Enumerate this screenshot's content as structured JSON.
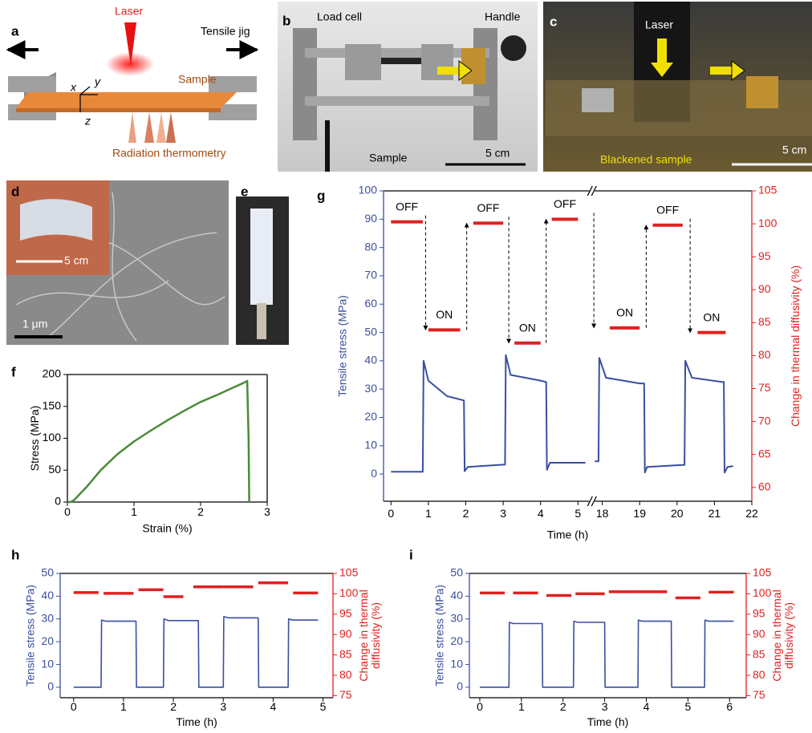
{
  "panels": {
    "a": {
      "letter": "a",
      "laser": "Laser",
      "jig": "Tensile jig",
      "sample": "Sample",
      "x": "x",
      "y": "y",
      "z": "z",
      "thermometry": "Radiation thermometry"
    },
    "b": {
      "letter": "b",
      "load_cell": "Load cell",
      "handle": "Handle",
      "sample": "Sample",
      "scale": "5 cm"
    },
    "c": {
      "letter": "c",
      "laser": "Laser",
      "sample": "Blackened sample",
      "scale": "5 cm"
    },
    "d": {
      "letter": "d",
      "inset_scale": "5 cm",
      "scale": "1 μm"
    },
    "e": {
      "letter": "e"
    }
  },
  "chart_data": [
    {
      "panel_label": "f",
      "type": "line",
      "xlabel": "Strain (%)",
      "ylabel": "Stress (MPa)",
      "xlim": [
        0,
        3
      ],
      "xticks": [
        0,
        1,
        2,
        3
      ],
      "ylim": [
        0,
        200
      ],
      "yticks": [
        0,
        50,
        100,
        150,
        200
      ],
      "series": [
        {
          "color": "#4a8a3a",
          "x": [
            0,
            0.05,
            0.1,
            0.3,
            0.5,
            0.75,
            1,
            1.25,
            1.5,
            1.75,
            2,
            2.25,
            2.5,
            2.65,
            2.7,
            2.72,
            2.73
          ],
          "values": [
            0,
            0,
            3,
            25,
            50,
            75,
            95,
            112,
            128,
            143,
            157,
            168,
            180,
            187,
            190,
            100,
            0
          ]
        }
      ]
    },
    {
      "panel_label": "g",
      "type": "line",
      "xlabel": "Time (h)",
      "ylabel": "Tensile stress (MPa)",
      "y2label": [
        "Change in thermal diffusivity (%)"
      ],
      "xlim": [
        [
          -0.2,
          5.3
        ],
        [
          17.8,
          22
        ]
      ],
      "xticks": [
        0,
        1,
        2,
        3,
        4,
        5,
        18,
        19,
        20,
        21,
        22
      ],
      "ylim": [
        -9.6,
        100
      ],
      "yticks": [
        0,
        10,
        20,
        30,
        40,
        50,
        60,
        70,
        80,
        90,
        100
      ],
      "y2lim": [
        57.9,
        105
      ],
      "y2ticks": [
        60,
        65,
        70,
        75,
        80,
        85,
        90,
        95,
        100,
        105
      ],
      "ycolor": "#3a4fa0",
      "y2color": "#e02020",
      "series": [
        {
          "color": "#3a4fa0",
          "x": [
            0,
            0.85,
            0.87,
            1.0,
            1.5,
            1.95,
            1.97,
            2.05,
            3.0,
            3.05,
            3.07,
            3.2,
            4.0,
            4.15,
            4.17,
            4.25,
            5.2,
            null,
            17.8,
            17.9,
            17.92,
            18.1,
            19.0,
            19.12,
            19.14,
            19.2,
            20.15,
            20.2,
            20.22,
            20.4,
            21.2,
            21.25,
            21.27,
            21.35,
            21.5
          ],
          "values": [
            0.8,
            0.8,
            40,
            33,
            27.5,
            26,
            1,
            2.5,
            3.3,
            3.3,
            42,
            35,
            33,
            32.5,
            1.5,
            4,
            4,
            null,
            4.5,
            4.5,
            41,
            34,
            32,
            32,
            0.5,
            2.5,
            3.2,
            3.2,
            40,
            34,
            32.5,
            32.5,
            0.5,
            2.5,
            2.8
          ]
        }
      ],
      "state_bars": {
        "color": "#e02020",
        "axis": "y2",
        "x_start": [
          0,
          1.0,
          2.2,
          3.3,
          4.3,
          18.2,
          19.35,
          20.55
        ],
        "x_end": [
          0.85,
          1.85,
          3.0,
          4.0,
          5.0,
          19.0,
          20.15,
          21.3
        ],
        "values": [
          100.3,
          83.9,
          100.1,
          81.9,
          100.7,
          84.2,
          99.8,
          83.5
        ],
        "labels": [
          "OFF",
          "ON",
          "OFF",
          "ON",
          "OFF",
          "ON",
          "OFF",
          "ON"
        ]
      }
    },
    {
      "panel_label": "h",
      "type": "line",
      "xlabel": "Time (h)",
      "ylabel": "Tensile stress (MPa)",
      "y2label": [
        "Change in thermal",
        "diffusivity (%)"
      ],
      "xlim": [
        -0.27,
        5.2
      ],
      "xticks": [
        0,
        1,
        2,
        3,
        4,
        5
      ],
      "ylim": [
        -4.6,
        50
      ],
      "yticks": [
        0,
        10,
        20,
        30,
        40,
        50
      ],
      "y2lim": [
        74.5,
        105
      ],
      "y2ticks": [
        75,
        80,
        85,
        90,
        95,
        100,
        105
      ],
      "ycolor": "#3a4fa0",
      "y2color": "#e02020",
      "series": [
        {
          "color": "#3a4fa0",
          "x": [
            0,
            0.55,
            0.56,
            0.65,
            1.25,
            1.26,
            1.8,
            1.81,
            1.9,
            2.5,
            2.51,
            3.0,
            3.01,
            3.1,
            3.7,
            3.71,
            4.3,
            4.31,
            4.4,
            4.9
          ],
          "values": [
            0,
            0,
            29.5,
            29,
            29,
            0,
            0,
            30,
            29.3,
            29.3,
            0,
            0,
            31,
            30.5,
            30.5,
            0,
            0,
            30,
            29.5,
            29.5
          ]
        }
      ],
      "state_bars": {
        "color": "#e02020",
        "axis": "y2",
        "x_start": [
          0,
          0.6,
          1.3,
          1.8,
          2.4,
          3.0,
          3.7,
          4.4
        ],
        "x_end": [
          0.5,
          1.2,
          1.8,
          2.2,
          3.0,
          3.6,
          4.3,
          4.9
        ],
        "values": [
          100.3,
          100.1,
          101,
          99.3,
          101.7,
          101.7,
          102.7,
          100.2
        ]
      }
    },
    {
      "panel_label": "i",
      "type": "line",
      "xlabel": "Time (h)",
      "ylabel": "Tensile stress (MPa)",
      "y2label": [
        "Change in thermal",
        "diffusivity (%)"
      ],
      "xlim": [
        -0.25,
        6.4
      ],
      "xticks": [
        0,
        1,
        2,
        3,
        4,
        5,
        6
      ],
      "ylim": [
        -4.6,
        50
      ],
      "yticks": [
        0,
        10,
        20,
        30,
        40,
        50
      ],
      "y2lim": [
        74.5,
        105
      ],
      "y2ticks": [
        75,
        80,
        85,
        90,
        95,
        100,
        105
      ],
      "ycolor": "#3a4fa0",
      "y2color": "#e02020",
      "series": [
        {
          "color": "#3a4fa0",
          "x": [
            0,
            0.7,
            0.71,
            0.8,
            1.5,
            1.51,
            2.25,
            2.26,
            2.35,
            3.0,
            3.01,
            3.8,
            3.81,
            3.9,
            4.6,
            4.61,
            5.4,
            5.41,
            5.5,
            6.1
          ],
          "values": [
            0,
            0,
            28.5,
            28,
            28,
            0,
            0,
            29,
            28.5,
            28.5,
            0,
            0,
            29.5,
            29,
            29,
            0,
            0,
            29.5,
            29,
            29
          ]
        }
      ],
      "state_bars": {
        "color": "#e02020",
        "axis": "y2",
        "x_start": [
          0,
          0.8,
          1.6,
          2.3,
          3.1,
          3.8,
          4.7,
          5.5
        ],
        "x_end": [
          0.6,
          1.4,
          2.2,
          3.0,
          3.8,
          4.5,
          5.3,
          6.1
        ],
        "values": [
          100.2,
          100.2,
          99.6,
          100.0,
          100.5,
          100.5,
          99,
          100.4
        ]
      }
    }
  ]
}
